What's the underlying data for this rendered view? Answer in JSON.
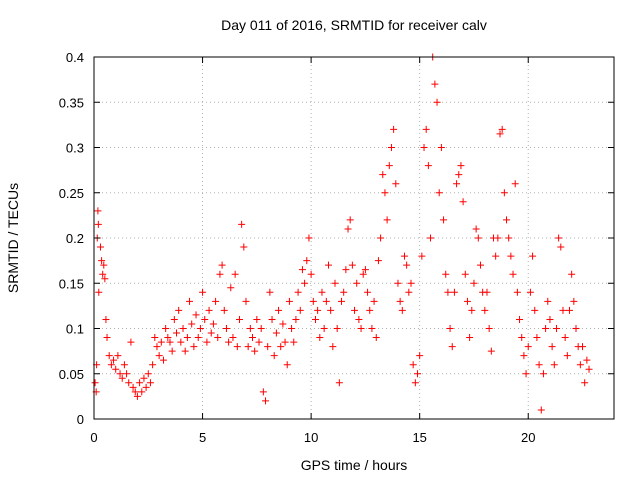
{
  "chart_data": {
    "type": "scatter",
    "title": "Day 011 of 2016, SRMTID for receiver calv",
    "xlabel": "GPS time / hours",
    "ylabel": "SRMTID / TECUs",
    "xlim": [
      0,
      23.95
    ],
    "ylim": [
      0,
      0.4
    ],
    "xticks": [
      0,
      5,
      10,
      15,
      20
    ],
    "xtick_labels": [
      "0",
      "5",
      "10",
      "15",
      "20"
    ],
    "yticks": [
      0,
      0.05,
      0.1,
      0.15,
      0.2,
      0.25,
      0.3,
      0.35,
      0.4
    ],
    "ytick_labels": [
      "0",
      "0.05",
      "0.1",
      "0.15",
      "0.2",
      "0.25",
      "0.3",
      "0.35",
      "0.4"
    ],
    "grid": true,
    "marker": "+",
    "color": "#ff0000",
    "series": [
      {
        "name": "SRMTID",
        "points": [
          [
            0.05,
            0.04
          ],
          [
            0.1,
            0.03
          ],
          [
            0.12,
            0.06
          ],
          [
            0.15,
            0.2
          ],
          [
            0.18,
            0.23
          ],
          [
            0.2,
            0.215
          ],
          [
            0.22,
            0.14
          ],
          [
            0.3,
            0.19
          ],
          [
            0.35,
            0.175
          ],
          [
            0.4,
            0.16
          ],
          [
            0.45,
            0.17
          ],
          [
            0.5,
            0.155
          ],
          [
            0.55,
            0.11
          ],
          [
            0.6,
            0.09
          ],
          [
            0.7,
            0.07
          ],
          [
            0.8,
            0.06
          ],
          [
            0.9,
            0.065
          ],
          [
            1.0,
            0.055
          ],
          [
            1.1,
            0.07
          ],
          [
            1.2,
            0.05
          ],
          [
            1.3,
            0.045
          ],
          [
            1.4,
            0.06
          ],
          [
            1.5,
            0.05
          ],
          [
            1.6,
            0.04
          ],
          [
            1.7,
            0.085
          ],
          [
            1.8,
            0.035
          ],
          [
            1.9,
            0.03
          ],
          [
            2.0,
            0.025
          ],
          [
            2.1,
            0.04
          ],
          [
            2.2,
            0.03
          ],
          [
            2.3,
            0.045
          ],
          [
            2.4,
            0.035
          ],
          [
            2.5,
            0.05
          ],
          [
            2.6,
            0.04
          ],
          [
            2.7,
            0.06
          ],
          [
            2.8,
            0.09
          ],
          [
            2.9,
            0.08
          ],
          [
            3.0,
            0.07
          ],
          [
            3.1,
            0.085
          ],
          [
            3.2,
            0.065
          ],
          [
            3.3,
            0.1
          ],
          [
            3.4,
            0.09
          ],
          [
            3.5,
            0.085
          ],
          [
            3.6,
            0.075
          ],
          [
            3.7,
            0.11
          ],
          [
            3.8,
            0.095
          ],
          [
            3.9,
            0.12
          ],
          [
            4.0,
            0.085
          ],
          [
            4.1,
            0.1
          ],
          [
            4.2,
            0.075
          ],
          [
            4.3,
            0.09
          ],
          [
            4.4,
            0.13
          ],
          [
            4.5,
            0.105
          ],
          [
            4.6,
            0.08
          ],
          [
            4.7,
            0.115
          ],
          [
            4.8,
            0.09
          ],
          [
            4.9,
            0.1
          ],
          [
            5.0,
            0.14
          ],
          [
            5.1,
            0.11
          ],
          [
            5.2,
            0.085
          ],
          [
            5.3,
            0.12
          ],
          [
            5.4,
            0.095
          ],
          [
            5.5,
            0.105
          ],
          [
            5.6,
            0.13
          ],
          [
            5.7,
            0.09
          ],
          [
            5.8,
            0.16
          ],
          [
            5.9,
            0.17
          ],
          [
            6.0,
            0.12
          ],
          [
            6.1,
            0.1
          ],
          [
            6.2,
            0.085
          ],
          [
            6.3,
            0.145
          ],
          [
            6.4,
            0.09
          ],
          [
            6.5,
            0.16
          ],
          [
            6.6,
            0.08
          ],
          [
            6.7,
            0.11
          ],
          [
            6.8,
            0.215
          ],
          [
            6.9,
            0.19
          ],
          [
            7.0,
            0.13
          ],
          [
            7.1,
            0.08
          ],
          [
            7.2,
            0.1
          ],
          [
            7.3,
            0.09
          ],
          [
            7.4,
            0.075
          ],
          [
            7.5,
            0.11
          ],
          [
            7.6,
            0.085
          ],
          [
            7.7,
            0.1
          ],
          [
            7.8,
            0.03
          ],
          [
            7.9,
            0.02
          ],
          [
            8.0,
            0.08
          ],
          [
            8.1,
            0.14
          ],
          [
            8.2,
            0.11
          ],
          [
            8.3,
            0.07
          ],
          [
            8.4,
            0.095
          ],
          [
            8.5,
            0.12
          ],
          [
            8.6,
            0.08
          ],
          [
            8.7,
            0.105
          ],
          [
            8.8,
            0.085
          ],
          [
            8.9,
            0.06
          ],
          [
            9.0,
            0.13
          ],
          [
            9.1,
            0.1
          ],
          [
            9.2,
            0.085
          ],
          [
            9.3,
            0.11
          ],
          [
            9.4,
            0.14
          ],
          [
            9.5,
            0.12
          ],
          [
            9.6,
            0.165
          ],
          [
            9.7,
            0.15
          ],
          [
            9.8,
            0.175
          ],
          [
            9.9,
            0.2
          ],
          [
            10.0,
            0.16
          ],
          [
            10.1,
            0.13
          ],
          [
            10.2,
            0.11
          ],
          [
            10.3,
            0.12
          ],
          [
            10.4,
            0.09
          ],
          [
            10.5,
            0.14
          ],
          [
            10.6,
            0.1
          ],
          [
            10.7,
            0.13
          ],
          [
            10.8,
            0.17
          ],
          [
            10.9,
            0.12
          ],
          [
            11.0,
            0.08
          ],
          [
            11.1,
            0.15
          ],
          [
            11.2,
            0.1
          ],
          [
            11.3,
            0.04
          ],
          [
            11.4,
            0.13
          ],
          [
            11.5,
            0.14
          ],
          [
            11.6,
            0.165
          ],
          [
            11.7,
            0.21
          ],
          [
            11.8,
            0.22
          ],
          [
            11.9,
            0.17
          ],
          [
            12.0,
            0.12
          ],
          [
            12.1,
            0.15
          ],
          [
            12.2,
            0.11
          ],
          [
            12.3,
            0.1
          ],
          [
            12.4,
            0.16
          ],
          [
            12.5,
            0.165
          ],
          [
            12.6,
            0.14
          ],
          [
            12.7,
            0.12
          ],
          [
            12.8,
            0.1
          ],
          [
            12.9,
            0.13
          ],
          [
            13.0,
            0.09
          ],
          [
            13.1,
            0.175
          ],
          [
            13.2,
            0.2
          ],
          [
            13.3,
            0.27
          ],
          [
            13.4,
            0.25
          ],
          [
            13.5,
            0.22
          ],
          [
            13.6,
            0.28
          ],
          [
            13.7,
            0.3
          ],
          [
            13.8,
            0.32
          ],
          [
            13.9,
            0.26
          ],
          [
            14.0,
            0.15
          ],
          [
            14.1,
            0.13
          ],
          [
            14.2,
            0.12
          ],
          [
            14.3,
            0.18
          ],
          [
            14.4,
            0.17
          ],
          [
            14.5,
            0.14
          ],
          [
            14.6,
            0.15
          ],
          [
            14.7,
            0.06
          ],
          [
            14.8,
            0.04
          ],
          [
            14.9,
            0.05
          ],
          [
            15.0,
            0.07
          ],
          [
            15.1,
            0.18
          ],
          [
            15.2,
            0.3
          ],
          [
            15.3,
            0.32
          ],
          [
            15.4,
            0.28
          ],
          [
            15.5,
            0.2
          ],
          [
            15.6,
            0.4
          ],
          [
            15.7,
            0.37
          ],
          [
            15.8,
            0.35
          ],
          [
            15.9,
            0.25
          ],
          [
            16.0,
            0.3
          ],
          [
            16.1,
            0.22
          ],
          [
            16.2,
            0.16
          ],
          [
            16.3,
            0.14
          ],
          [
            16.4,
            0.1
          ],
          [
            16.5,
            0.08
          ],
          [
            16.6,
            0.14
          ],
          [
            16.7,
            0.26
          ],
          [
            16.8,
            0.27
          ],
          [
            16.9,
            0.28
          ],
          [
            17.0,
            0.24
          ],
          [
            17.1,
            0.16
          ],
          [
            17.2,
            0.13
          ],
          [
            17.3,
            0.09
          ],
          [
            17.4,
            0.12
          ],
          [
            17.5,
            0.15
          ],
          [
            17.6,
            0.21
          ],
          [
            17.7,
            0.2
          ],
          [
            17.8,
            0.17
          ],
          [
            17.9,
            0.14
          ],
          [
            18.0,
            0.12
          ],
          [
            18.1,
            0.14
          ],
          [
            18.2,
            0.1
          ],
          [
            18.3,
            0.075
          ],
          [
            18.4,
            0.2
          ],
          [
            18.5,
            0.18
          ],
          [
            18.6,
            0.2
          ],
          [
            18.7,
            0.315
          ],
          [
            18.8,
            0.32
          ],
          [
            18.9,
            0.25
          ],
          [
            19.0,
            0.22
          ],
          [
            19.1,
            0.2
          ],
          [
            19.2,
            0.18
          ],
          [
            19.3,
            0.16
          ],
          [
            19.4,
            0.26
          ],
          [
            19.5,
            0.14
          ],
          [
            19.6,
            0.11
          ],
          [
            19.7,
            0.09
          ],
          [
            19.8,
            0.07
          ],
          [
            19.9,
            0.05
          ],
          [
            20.0,
            0.08
          ],
          [
            20.1,
            0.14
          ],
          [
            20.2,
            0.18
          ],
          [
            20.3,
            0.12
          ],
          [
            20.4,
            0.09
          ],
          [
            20.5,
            0.06
          ],
          [
            20.6,
            0.01
          ],
          [
            20.7,
            0.05
          ],
          [
            20.8,
            0.1
          ],
          [
            20.9,
            0.13
          ],
          [
            21.0,
            0.11
          ],
          [
            21.1,
            0.08
          ],
          [
            21.2,
            0.06
          ],
          [
            21.3,
            0.1
          ],
          [
            21.4,
            0.2
          ],
          [
            21.5,
            0.19
          ],
          [
            21.6,
            0.12
          ],
          [
            21.7,
            0.09
          ],
          [
            21.8,
            0.07
          ],
          [
            21.9,
            0.12
          ],
          [
            22.0,
            0.16
          ],
          [
            22.1,
            0.13
          ],
          [
            22.2,
            0.1
          ],
          [
            22.3,
            0.08
          ],
          [
            22.4,
            0.06
          ],
          [
            22.5,
            0.08
          ],
          [
            22.6,
            0.04
          ],
          [
            22.7,
            0.065
          ],
          [
            22.8,
            0.055
          ]
        ]
      }
    ]
  }
}
